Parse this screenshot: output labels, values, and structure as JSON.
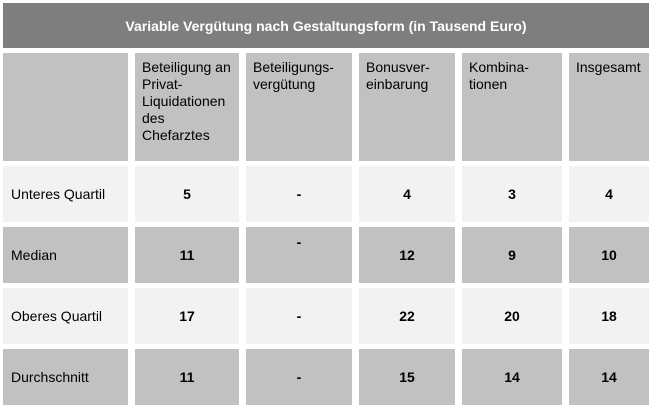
{
  "chart_data": {
    "type": "table",
    "title": "Variable Vergütung nach Gestaltungsform (in Tausend Euro)",
    "unit": "Tausend Euro",
    "columns": [
      "Beteiligung an Privat-Liquidationen des Chefarztes",
      "Beteiligungs-vergütung",
      "Bonusver-einbarung",
      "Kombina-tionen",
      "Insgesamt"
    ],
    "rows": [
      {
        "label": "Unteres Quartil",
        "values": [
          "5",
          "-",
          "4",
          "3",
          "4"
        ]
      },
      {
        "label": "Median",
        "values": [
          "11",
          "-",
          "12",
          "9",
          "10"
        ]
      },
      {
        "label": "Oberes Quartil",
        "values": [
          "17",
          "-",
          "22",
          "20",
          "18"
        ]
      },
      {
        "label": "Durchschnitt",
        "values": [
          "11",
          "-",
          "15",
          "14",
          "14"
        ]
      }
    ]
  },
  "colors": {
    "title_bar_bg": "#7e7e7e",
    "title_text": "#ffffff",
    "header_bg": "#c1c1c1",
    "row_light_bg": "#f2f2f2",
    "row_dark_bg": "#c1c1c1",
    "cell_text": "#000000",
    "background": "#ffffff"
  }
}
